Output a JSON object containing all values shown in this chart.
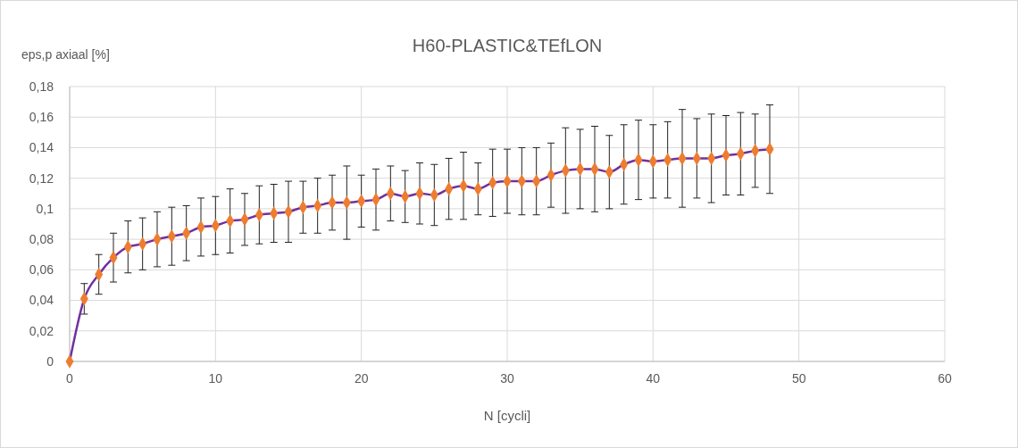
{
  "chart_data": {
    "type": "line",
    "title": "H60-PLASTIC&TEfLON",
    "xlabel": "N [cycli]",
    "ylabel": "eps,p axiaal [%]",
    "x": [
      0,
      1,
      2,
      3,
      4,
      5,
      6,
      7,
      8,
      9,
      10,
      11,
      12,
      13,
      14,
      15,
      16,
      17,
      18,
      19,
      20,
      21,
      22,
      23,
      24,
      25,
      26,
      27,
      28,
      29,
      30,
      31,
      32,
      33,
      34,
      35,
      36,
      37,
      38,
      39,
      40,
      41,
      42,
      43,
      44,
      45,
      46,
      47,
      48
    ],
    "series": [
      {
        "color": "#7030a0",
        "colors": [
          "#ed7d31",
          "#ed7d31",
          "#ed7d31",
          "#ed7d31",
          "#ed7d31",
          "#ed7d31",
          "#ed7d31",
          "#ed7d31",
          "#ed7d31",
          "#ed7d31",
          "#ed7d31",
          "#ed7d31",
          "#ed7d31",
          "#ed7d31",
          "#ed7d31",
          "#ed7d31",
          "#ed7d31",
          "#ed7d31",
          "#ed7d31",
          "#ed7d31",
          "#ed7d31",
          "#ed7d31",
          "#ed7d31",
          "#ed7d31",
          "#ed7d31",
          "#ed7d31",
          "#ed7d31",
          "#ed7d31",
          "#ed7d31",
          "#ed7d31",
          "#ed7d31",
          "#ed7d31",
          "#ed7d31",
          "#ed7d31",
          "#ed7d31",
          "#ed7d31",
          "#ed7d31",
          "#ed7d31",
          "#ed7d31",
          "#ed7d31",
          "#ed7d31",
          "#ed7d31",
          "#ed7d31",
          "#ed7d31",
          "#ed7d31",
          "#ed7d31",
          "#ed7d31",
          "#ed7d31",
          "#ed7d31"
        ],
        "values": [
          0,
          0.041,
          0.057,
          0.068,
          0.075,
          0.077,
          0.08,
          0.082,
          0.084,
          0.088,
          0.089,
          0.092,
          0.093,
          0.096,
          0.097,
          0.098,
          0.101,
          0.102,
          0.104,
          0.104,
          0.105,
          0.106,
          0.11,
          0.108,
          0.11,
          0.109,
          0.113,
          0.115,
          0.113,
          0.117,
          0.118,
          0.118,
          0.118,
          0.122,
          0.125,
          0.126,
          0.126,
          0.124,
          0.129,
          0.132,
          0.131,
          0.132,
          0.133,
          0.133,
          0.133,
          0.135,
          0.136,
          0.138,
          0.139
        ],
        "errors": [
          null,
          0.01,
          0.013,
          0.016,
          0.017,
          0.017,
          0.018,
          0.019,
          0.018,
          0.019,
          0.019,
          0.021,
          0.017,
          0.019,
          0.019,
          0.02,
          0.017,
          0.018,
          0.018,
          0.024,
          0.017,
          0.02,
          0.018,
          0.017,
          0.02,
          0.02,
          0.02,
          0.022,
          0.017,
          0.022,
          0.021,
          0.022,
          0.022,
          0.021,
          0.028,
          0.026,
          0.028,
          0.024,
          0.026,
          0.026,
          0.024,
          0.025,
          0.032,
          0.026,
          0.029,
          0.026,
          0.027,
          0.024,
          0.029
        ]
      }
    ],
    "xlim": [
      0,
      60
    ],
    "xticks": [
      0,
      10,
      20,
      30,
      40,
      50,
      60
    ],
    "ylim": [
      0,
      0.18
    ],
    "yticks": [
      0,
      {
        "value": 0.02,
        "label": "0,02"
      },
      {
        "value": 0.04,
        "label": "0,04"
      },
      {
        "value": 0.06,
        "label": "0,06"
      },
      {
        "value": 0.08,
        "label": "0,08"
      },
      {
        "value": 0.1,
        "label": "0,1"
      },
      {
        "value": 0.12,
        "label": "0,12"
      },
      {
        "value": 0.14,
        "label": "0,14"
      },
      {
        "value": 0.16,
        "label": "0,16"
      },
      {
        "value": 0.18,
        "label": "0,18"
      }
    ],
    "grid": true,
    "marker": "diamond",
    "line_style": "solid"
  }
}
